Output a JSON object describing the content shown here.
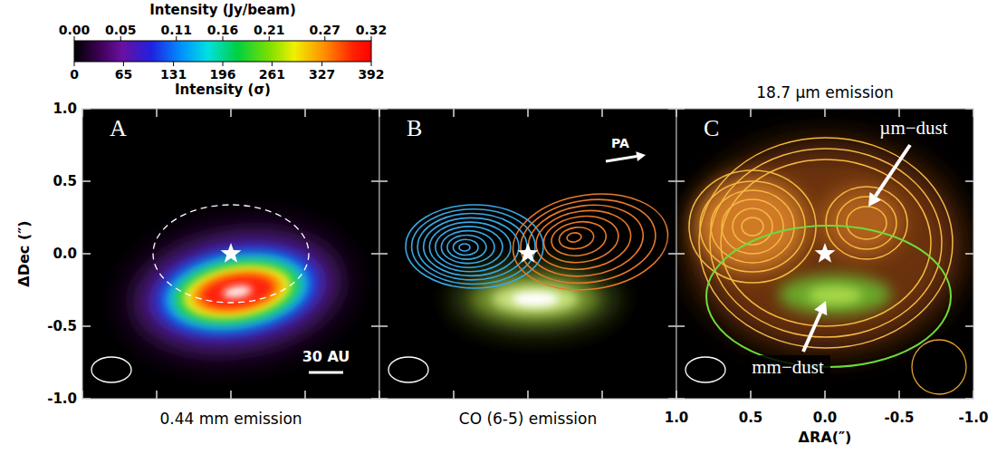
{
  "chart_data": {
    "type": "image",
    "xlabel": "ΔRA(″)",
    "ylabel": "ΔDec (″)",
    "xlim": [
      1,
      -1
    ],
    "ylim": [
      -1,
      1
    ],
    "xticks": [
      {
        "value": 1,
        "label": "1.0"
      },
      0.5,
      {
        "value": 0,
        "label": "0.0"
      },
      -0.5,
      {
        "value": -1,
        "label": "-1.0"
      }
    ],
    "yticks": [
      {
        "value": -1,
        "label": "-1.0"
      },
      -0.5,
      {
        "value": 0,
        "label": "0.0"
      },
      0.5,
      {
        "value": 1,
        "label": "1.0"
      }
    ],
    "colorbar": {
      "title": "Intensity (Jy/beam)",
      "range": [
        0,
        0.32
      ],
      "ticks": [
        {
          "value": 0,
          "label": "0.00"
        },
        0.05,
        0.11,
        0.16,
        0.21,
        0.27,
        0.32
      ],
      "title2": "Intensity (σ)",
      "range2": [
        0,
        392
      ],
      "ticks2": [
        0,
        65,
        131,
        196,
        261,
        327,
        392
      ]
    },
    "panels": [
      {
        "letter": "A",
        "caption": "0.44 mm emission",
        "scale_bar": "30 AU"
      },
      {
        "letter": "B",
        "caption": "CO (6-5) emission",
        "arrow_label": "PA"
      },
      {
        "letter": "C",
        "title": "18.7 µm emission",
        "annotations": [
          "µm−dust",
          "mm−dust"
        ]
      }
    ]
  }
}
